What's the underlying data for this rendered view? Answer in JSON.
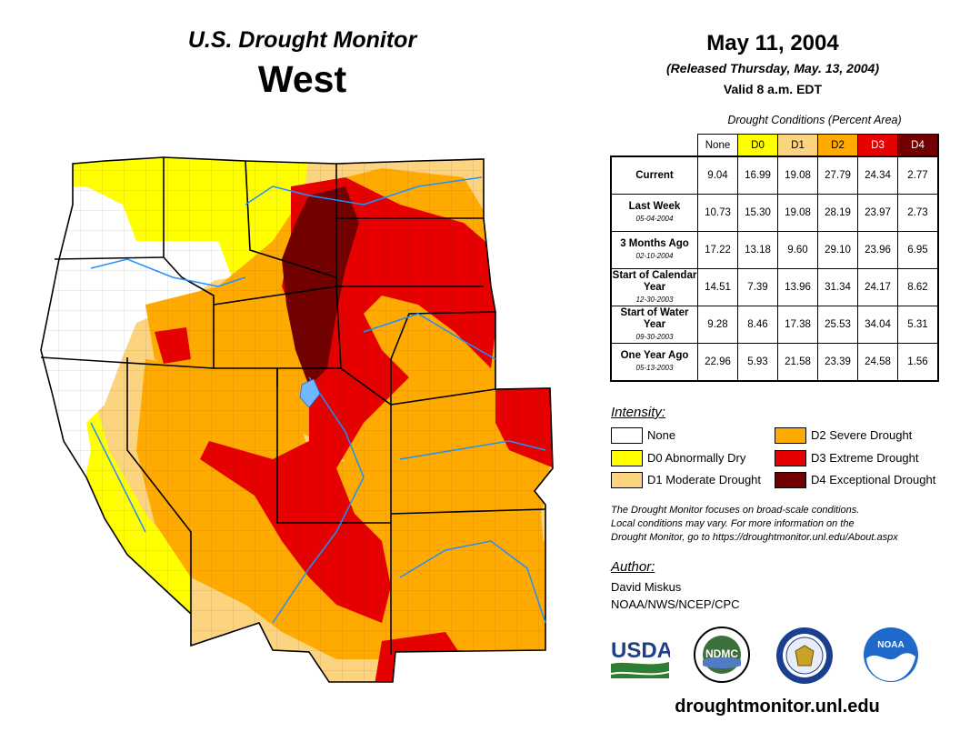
{
  "header": {
    "product": "U.S. Drought Monitor",
    "region": "West",
    "date": "May 11, 2004",
    "released": "(Released Thursday, May. 13, 2004)",
    "valid": "Valid 8 a.m. EDT"
  },
  "conditions": {
    "caption": "Drought Conditions (Percent Area)",
    "columns": [
      "None",
      "D0",
      "D1",
      "D2",
      "D3",
      "D4"
    ],
    "column_colors": [
      "#ffffff",
      "#ffff00",
      "#fcd37f",
      "#ffaa00",
      "#e60000",
      "#730000"
    ],
    "rows": [
      {
        "label": "Current",
        "date": "",
        "values": [
          "9.04",
          "16.99",
          "19.08",
          "27.79",
          "24.34",
          "2.77"
        ]
      },
      {
        "label": "Last Week",
        "date": "05-04-2004",
        "values": [
          "10.73",
          "15.30",
          "19.08",
          "28.19",
          "23.97",
          "2.73"
        ]
      },
      {
        "label": "3 Months Ago",
        "date": "02-10-2004",
        "values": [
          "17.22",
          "13.18",
          "9.60",
          "29.10",
          "23.96",
          "6.95"
        ]
      },
      {
        "label": "Start of Calendar Year",
        "date": "12-30-2003",
        "values": [
          "14.51",
          "7.39",
          "13.96",
          "31.34",
          "24.17",
          "8.62"
        ]
      },
      {
        "label": "Start of Water Year",
        "date": "09-30-2003",
        "values": [
          "9.28",
          "8.46",
          "17.38",
          "25.53",
          "34.04",
          "5.31"
        ]
      },
      {
        "label": "One Year Ago",
        "date": "05-13-2003",
        "values": [
          "22.96",
          "5.93",
          "21.58",
          "23.39",
          "24.58",
          "1.56"
        ]
      }
    ]
  },
  "legend": {
    "title": "Intensity:",
    "items": [
      {
        "label": "None",
        "color": "#ffffff"
      },
      {
        "label": "D0 Abnormally Dry",
        "color": "#ffff00"
      },
      {
        "label": "D1 Moderate Drought",
        "color": "#fcd37f"
      },
      {
        "label": "D2 Severe Drought",
        "color": "#ffaa00"
      },
      {
        "label": "D3 Extreme Drought",
        "color": "#e60000"
      },
      {
        "label": "D4 Exceptional Drought",
        "color": "#730000"
      }
    ]
  },
  "note": {
    "line1": "The Drought Monitor focuses on broad-scale conditions.",
    "line2": "Local conditions may vary. For more information on the",
    "line3": "Drought Monitor, go to https://droughtmonitor.unl.edu/About.aspx"
  },
  "author": {
    "title": "Author:",
    "name": "David Miskus",
    "org": "NOAA/NWS/NCEP/CPC"
  },
  "logos": {
    "usda": "USDA",
    "ndmc": "NDMC",
    "noaa": "NOAA"
  },
  "footer": {
    "url": "droughtmonitor.unl.edu"
  }
}
